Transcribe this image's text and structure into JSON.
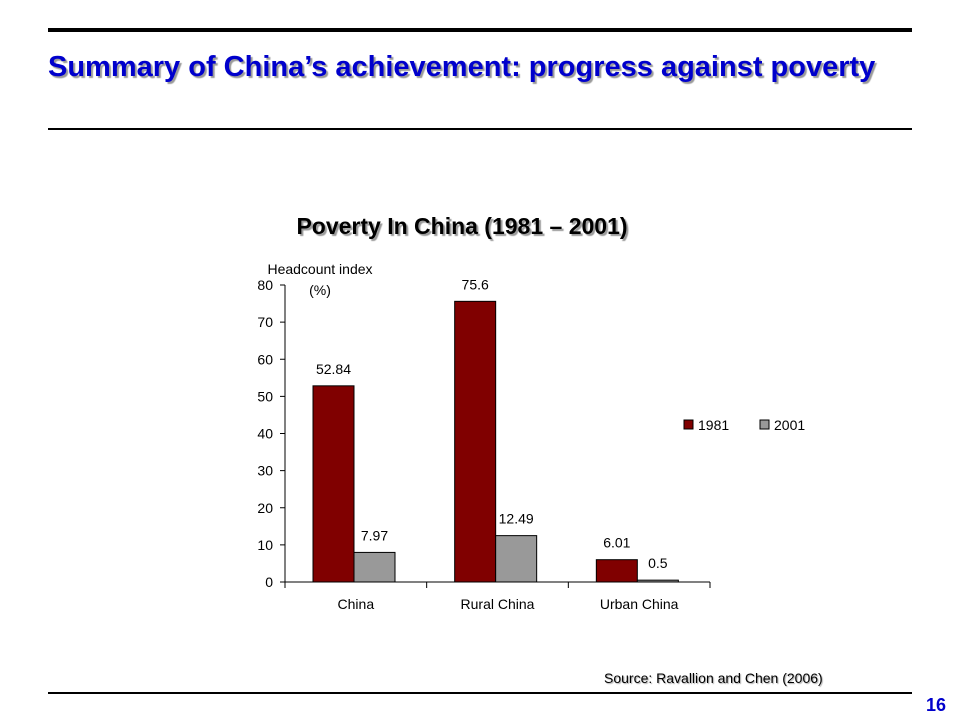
{
  "slide": {
    "title": "Summary of China’s achievement: progress against poverty",
    "source": "Source: Ravallion and Chen (2006)",
    "page_number": "16"
  },
  "colors": {
    "title": "#0000cc",
    "series_1981": "#800000",
    "series_2001": "#999999"
  },
  "chart_data": {
    "type": "bar",
    "title": "Poverty In China (1981 – 2001)",
    "ylabel_lines": [
      "Headcount index",
      "(%)"
    ],
    "xlabel": "",
    "categories": [
      "China",
      "Rural China",
      "Urban China"
    ],
    "series": [
      {
        "name": "1981",
        "values": [
          52.84,
          75.6,
          6.01
        ],
        "labels": [
          "52.84",
          "75.6",
          "6.01"
        ]
      },
      {
        "name": "2001",
        "values": [
          7.97,
          12.49,
          0.5
        ],
        "labels": [
          "7.97",
          "12.49",
          "0.5"
        ]
      }
    ],
    "ylim": [
      0,
      80
    ],
    "yticks": [
      0,
      10,
      20,
      30,
      40,
      50,
      60,
      70,
      80
    ],
    "grid": false,
    "legend": "right"
  }
}
